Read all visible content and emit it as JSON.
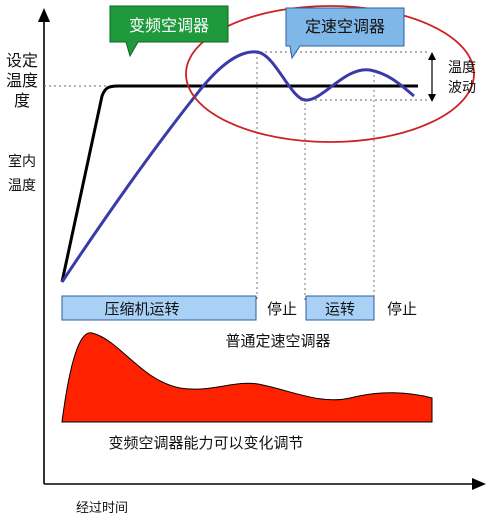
{
  "labels": {
    "y_axis_setpoint": [
      "设定",
      "温度"
    ],
    "y_axis_room": [
      "室内",
      "温度"
    ],
    "x_axis": "经过时间",
    "inverter_callout": "变频空调器",
    "fixed_speed_callout": "定速空调器",
    "temp_fluctuation": [
      "温度",
      "波动"
    ],
    "compressor_running": "压缩机运转",
    "stop_1": "停止",
    "running": "运转",
    "stop_2": "停止",
    "ordinary_fixed_speed": "普通定速空调器",
    "inverter_capacity": "变频空调器能力可以变化调节"
  },
  "colors": {
    "setpoint_line": "#000000",
    "fixed_curve": "#3a3aa8",
    "capacity_fill": "#ff2200",
    "bar_fill": "#a9d0f5",
    "bar_stroke": "#2d5fa0",
    "green_callout": "#1e9a3c",
    "blue_callout": "#7fb7e8",
    "ellipse": "#cc2222"
  }
}
